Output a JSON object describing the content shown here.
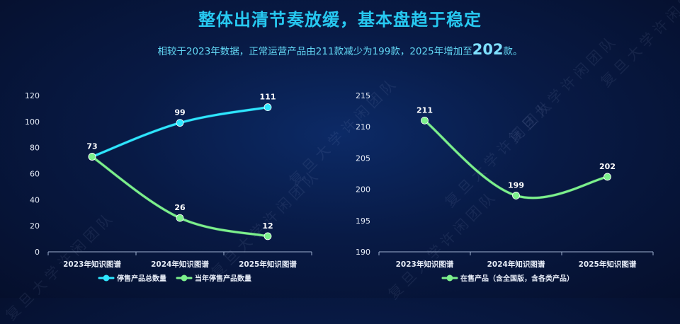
{
  "header": {
    "title": "整体出清节奏放缓，基本盘趋于稳定",
    "subtitle_prefix": "相较于2023年数据，正常运营产品由211款减少为199款，2025年增加至",
    "subtitle_highlight": "202",
    "subtitle_suffix": "款。"
  },
  "watermark_text": "复旦大学许闲团队",
  "colors": {
    "cyan": "#2ee6ff",
    "green": "#7cf08c",
    "axis": "#9fb0d0"
  },
  "chart_data": [
    {
      "type": "line",
      "categories": [
        "2023年知识图谱",
        "2024年知识图谱",
        "2025年知识图谱"
      ],
      "ylim": [
        0,
        120
      ],
      "yticks": [
        0,
        20,
        40,
        60,
        80,
        100,
        120
      ],
      "series": [
        {
          "name": "停售产品总数量",
          "values": [
            73,
            99,
            111
          ],
          "color": "#2ee6ff",
          "labels": [
            "73",
            "99",
            "111"
          ]
        },
        {
          "name": "当年停售产品数量",
          "values": [
            73,
            26,
            12
          ],
          "color": "#7cf08c",
          "labels": [
            "",
            "26",
            "12"
          ]
        }
      ],
      "legend": "bottom"
    },
    {
      "type": "line",
      "categories": [
        "2023年知识图谱",
        "2024年知识图谱",
        "2025年知识图谱"
      ],
      "ylim": [
        190,
        215
      ],
      "yticks": [
        190,
        195,
        200,
        205,
        210,
        215
      ],
      "series": [
        {
          "name": "在售产品（含全国版，含各类产品）",
          "values": [
            211,
            199,
            202
          ],
          "color": "#7cf08c",
          "labels": [
            "211",
            "199",
            "202"
          ]
        }
      ],
      "legend": "bottom"
    }
  ]
}
